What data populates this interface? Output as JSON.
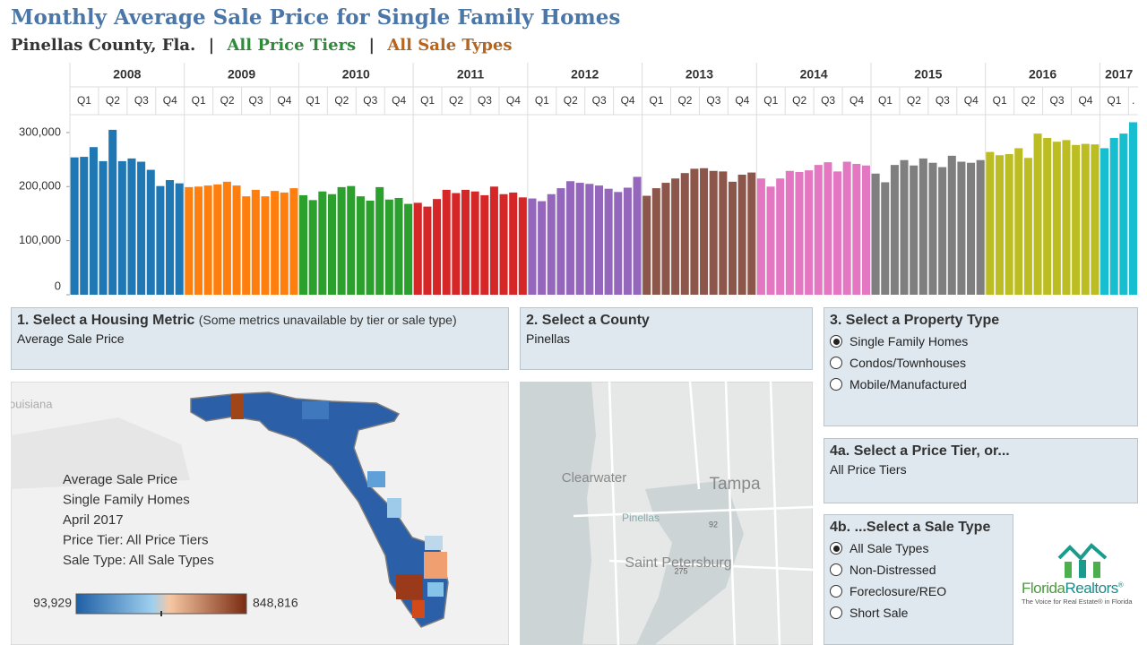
{
  "chart_data": {
    "type": "bar",
    "title": "Monthly Average Sale Price for Single Family Homes",
    "subtitle": {
      "county": "Pinellas County, Fla.",
      "separator": "|",
      "price_tier": "All Price Tiers",
      "sale_type": "All Sale Types"
    },
    "ylim": [
      0,
      333000
    ],
    "yticks": [
      0,
      {
        "value": 100000,
        "label": "100,000"
      },
      {
        "value": 200000,
        "label": "200,000"
      },
      {
        "value": 300000,
        "label": "300,000"
      }
    ],
    "grid": false,
    "series": [
      {
        "name": "2008",
        "color": "#1f77b4",
        "quarters": [
          "Q1",
          "Q2",
          "Q3",
          "Q4"
        ],
        "values": [
          254000,
          255000,
          273000,
          247000,
          305000,
          247000,
          252000,
          246000,
          231000,
          201000,
          212000,
          206000
        ]
      },
      {
        "name": "2009",
        "color": "#ff7f0e",
        "quarters": [
          "Q1",
          "Q2",
          "Q3",
          "Q4"
        ],
        "values": [
          199000,
          200000,
          202000,
          204000,
          209000,
          202000,
          182000,
          194000,
          182000,
          192000,
          189000,
          197000
        ]
      },
      {
        "name": "2010",
        "color": "#2ca02c",
        "quarters": [
          "Q1",
          "Q2",
          "Q3",
          "Q4"
        ],
        "values": [
          184000,
          175000,
          191000,
          186000,
          199000,
          201000,
          182000,
          174000,
          199000,
          176000,
          179000,
          168000
        ]
      },
      {
        "name": "2011",
        "color": "#d62728",
        "quarters": [
          "Q1",
          "Q2",
          "Q3",
          "Q4"
        ],
        "values": [
          170000,
          163000,
          177000,
          194000,
          188000,
          194000,
          191000,
          184000,
          200000,
          186000,
          189000,
          180000
        ]
      },
      {
        "name": "2012",
        "color": "#9467bd",
        "quarters": [
          "Q1",
          "Q2",
          "Q3",
          "Q4"
        ],
        "values": [
          178000,
          173000,
          186000,
          197000,
          210000,
          207000,
          205000,
          202000,
          196000,
          190000,
          198000,
          218000
        ]
      },
      {
        "name": "2013",
        "color": "#8c564b",
        "quarters": [
          "Q1",
          "Q2",
          "Q3",
          "Q4"
        ],
        "values": [
          183000,
          197000,
          207000,
          215000,
          225000,
          233000,
          234000,
          229000,
          228000,
          209000,
          222000,
          226000
        ]
      },
      {
        "name": "2014",
        "color": "#e377c2",
        "quarters": [
          "Q1",
          "Q2",
          "Q3",
          "Q4"
        ],
        "values": [
          215000,
          200000,
          215000,
          229000,
          227000,
          230000,
          240000,
          245000,
          228000,
          246000,
          242000,
          239000
        ]
      },
      {
        "name": "2015",
        "color": "#7f7f7f",
        "quarters": [
          "Q1",
          "Q2",
          "Q3",
          "Q4"
        ],
        "values": [
          224000,
          208000,
          240000,
          249000,
          239000,
          252000,
          244000,
          236000,
          257000,
          246000,
          244000,
          249000
        ]
      },
      {
        "name": "2016",
        "color": "#bcbd22",
        "quarters": [
          "Q1",
          "Q2",
          "Q3",
          "Q4"
        ],
        "values": [
          264000,
          258000,
          260000,
          271000,
          253000,
          298000,
          290000,
          283000,
          286000,
          277000,
          279000,
          278000
        ]
      },
      {
        "name": "2017",
        "color": "#17becf",
        "quarters": [
          "Q1",
          "."
        ],
        "values": [
          271000,
          290000,
          298000,
          319000
        ]
      }
    ]
  },
  "filters": {
    "metric": {
      "title": "1. Select a Housing Metric",
      "note": "(Some metrics unavailable by tier or sale type)",
      "value": "Average Sale Price"
    },
    "county": {
      "title": "2. Select a County",
      "value": "Pinellas"
    },
    "property_type": {
      "title": "3. Select a Property Type",
      "options": [
        {
          "label": "Single Family Homes",
          "selected": true
        },
        {
          "label": "Condos/Townhouses",
          "selected": false
        },
        {
          "label": "Mobile/Manufactured",
          "selected": false
        }
      ]
    },
    "price_tier": {
      "title": "4a. Select a Price Tier, or...",
      "value": "All Price Tiers"
    },
    "sale_type": {
      "title": "4b. ...Select a Sale Type",
      "options": [
        {
          "label": "All Sale Types",
          "selected": true
        },
        {
          "label": "Non-Distressed",
          "selected": false
        },
        {
          "label": "Foreclosure/REO",
          "selected": false
        },
        {
          "label": "Short Sale",
          "selected": false
        }
      ]
    }
  },
  "state_map": {
    "background_label": "ouisiana",
    "info_lines": [
      "Average Sale Price",
      "Single Family Homes",
      "April 2017",
      "Price Tier: All Price Tiers",
      "Sale Type: All Sale Types"
    ],
    "scale_min": "93,929",
    "scale_max": "848,816"
  },
  "street_map": {
    "labels": [
      "Clearwater",
      "Tampa",
      "Pinellas",
      "Saint Petersburg",
      "92",
      "275"
    ]
  },
  "logo": {
    "name_part1": "Florida",
    "name_part2": "Realtors",
    "mark": "®",
    "tagline": "The Voice for Real Estate® in Florida"
  }
}
